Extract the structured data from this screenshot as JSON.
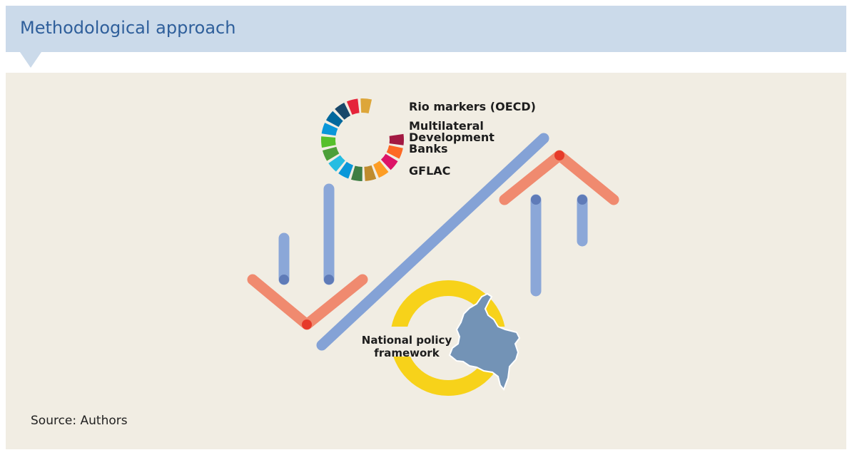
{
  "header": {
    "title": "Methodological approach"
  },
  "diagram": {
    "sources": {
      "rio": "Rio markers (OECD)",
      "mdb_line1": "Multilateral",
      "mdb_line2": "Development",
      "mdb_line3": "Banks",
      "gflac": "GFLAC"
    },
    "national": {
      "line1": "National policy",
      "line2": "framework"
    }
  },
  "footer": {
    "source": "Source: Authors"
  },
  "colors": {
    "header_bg": "#cbdaea",
    "title": "#2f5f9b",
    "panel_bg": "#f1ede3",
    "arrow_blue": "#7f9fd6",
    "arrow_red": "#f0785a",
    "ring_yellow": "#f7d21a",
    "map_fill": "#7393b6"
  }
}
